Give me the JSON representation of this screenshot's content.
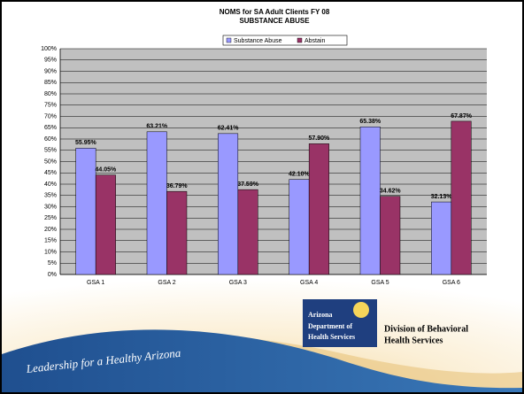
{
  "chart_data": {
    "type": "bar",
    "title": "NOMS for SA Adult Clients FY 08",
    "subtitle": "SUBSTANCE ABUSE",
    "categories": [
      "GSA 1",
      "GSA 2",
      "GSA 3",
      "GSA 4",
      "GSA 5",
      "GSA 6"
    ],
    "series": [
      {
        "name": "Substance Abuse",
        "color": "#9999ff",
        "values": [
          55.95,
          63.21,
          62.41,
          42.1,
          65.38,
          32.13
        ],
        "value_labels": [
          "55.95%",
          "63.21%",
          "62.41%",
          "42.10%",
          "65.38%",
          "32.13%"
        ]
      },
      {
        "name": "Abstain",
        "color": "#993366",
        "values": [
          44.05,
          36.79,
          37.59,
          57.9,
          34.62,
          67.87
        ],
        "value_labels": [
          "44.05%",
          "36.79%",
          "37.59%",
          "57.90%",
          "34.62%",
          "67.87%"
        ]
      }
    ],
    "ylim": [
      0,
      100
    ],
    "yticks": [
      {
        "value": 0,
        "label": "0%"
      },
      {
        "value": 5,
        "label": "5%"
      },
      {
        "value": 10,
        "label": "10%"
      },
      {
        "value": 15,
        "label": "15%"
      },
      {
        "value": 20,
        "label": "20%"
      },
      {
        "value": 25,
        "label": "25%"
      },
      {
        "value": 30,
        "label": "30%"
      },
      {
        "value": 35,
        "label": "35%"
      },
      {
        "value": 40,
        "label": "40%"
      },
      {
        "value": 45,
        "label": "45%"
      },
      {
        "value": 50,
        "label": "50%"
      },
      {
        "value": 55,
        "label": "55%"
      },
      {
        "value": 60,
        "label": "60%"
      },
      {
        "value": 65,
        "label": "65%"
      },
      {
        "value": 70,
        "label": "70%"
      },
      {
        "value": 75,
        "label": "75%"
      },
      {
        "value": 80,
        "label": "80%"
      },
      {
        "value": 85,
        "label": "85%"
      },
      {
        "value": 90,
        "label": "90%"
      },
      {
        "value": 95,
        "label": "95%"
      },
      {
        "value": 100,
        "label": "100%"
      }
    ],
    "grid": true,
    "legend": "top"
  },
  "footer": {
    "logo": [
      "Arizona",
      "Department of",
      "Health Services"
    ],
    "division": [
      "Division of Behavioral",
      "Health Services"
    ],
    "tagline": "Leadership for a Healthy Arizona"
  }
}
